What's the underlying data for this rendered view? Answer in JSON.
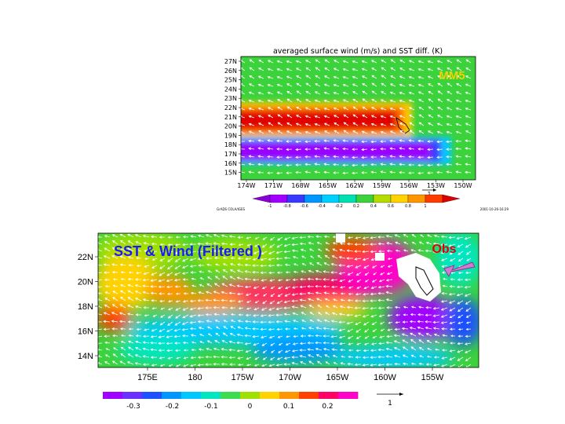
{
  "chart_data": [
    {
      "type": "heatmap",
      "title": "averaged surface wind (m/s) and SST diff. (K)",
      "annotation": "MM5",
      "annotation_color": "#f2d300",
      "lon_ticks": [
        "174W",
        "171W",
        "168W",
        "165W",
        "162W",
        "159W",
        "156W",
        "153W",
        "150W"
      ],
      "lat_ticks": [
        "27N",
        "26N",
        "25N",
        "24N",
        "23N",
        "22N",
        "21N",
        "20N",
        "19N",
        "18N",
        "17N",
        "16N",
        "15N"
      ],
      "colorbar": {
        "ticks": [
          "-1",
          "-0.8",
          "-0.6",
          "-0.4",
          "-0.2",
          "0.2",
          "0.4",
          "0.6",
          "0.8",
          "1"
        ],
        "colors": [
          "#8a00d8",
          "#a000ff",
          "#3a3aff",
          "#0096ff",
          "#00d0ff",
          "#00e0b0",
          "#3cd23c",
          "#b4dc00",
          "#ffd200",
          "#ff9600",
          "#ff3c00",
          "#dc0000"
        ]
      },
      "vector_reference": "1",
      "footer_left": "GrADS COLA/IGES",
      "footer_right": "2001-10-26-16:29",
      "background_color": "#3cd23c"
    },
    {
      "type": "heatmap",
      "title": "SST & Wind (Filtered )",
      "title_color": "#1a1aff",
      "annotation": "Obs",
      "annotation_color": "#e00000",
      "lon_ticks": [
        "175E",
        "180",
        "175W",
        "170W",
        "165W",
        "160W",
        "155W"
      ],
      "lat_ticks": [
        "22N",
        "20N",
        "18N",
        "16N",
        "14N"
      ],
      "colorbar": {
        "ticks": [
          "-0.3",
          "-0.2",
          "-0.1",
          "0",
          "0.1",
          "0.2"
        ],
        "colors": [
          "#a000ff",
          "#6a30ff",
          "#1e50ff",
          "#0096ff",
          "#00c8ff",
          "#00e6c0",
          "#3cdc50",
          "#a0e000",
          "#ffd200",
          "#ff9600",
          "#ff4000",
          "#ff0064",
          "#ff00c8"
        ]
      },
      "vector_reference": "1"
    }
  ]
}
